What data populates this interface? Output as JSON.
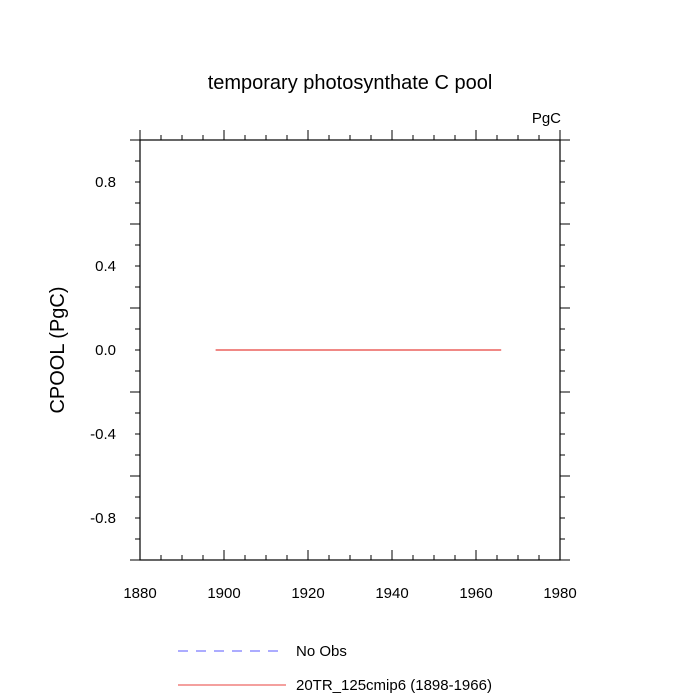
{
  "chart_data": {
    "type": "line",
    "title": "temporary photosynthate C pool",
    "units": "PgC",
    "xlabel": "",
    "ylabel": "CPOOL  (PgC)",
    "xlim": [
      1880,
      1980
    ],
    "ylim": [
      -1.0,
      1.0
    ],
    "x_ticks": [
      1880,
      1900,
      1920,
      1940,
      1960,
      1980
    ],
    "x_tick_labels": [
      "1880",
      "1900",
      "1920",
      "1940",
      "1960",
      "1980"
    ],
    "y_ticks": [
      -0.8,
      -0.4,
      0.0,
      0.4,
      0.8
    ],
    "y_tick_labels": [
      "-0.8",
      "-0.4",
      "0.0",
      "0.4",
      "0.8"
    ],
    "grid": false,
    "legend_position": "bottom",
    "series": [
      {
        "name": "No Obs",
        "style": "dashed",
        "color": "#5a5aff",
        "x": [],
        "y": []
      },
      {
        "name": "20TR_125cmip6 (1898-1966)",
        "style": "solid",
        "color": "#e8413c",
        "x": [
          1898,
          1966
        ],
        "y": [
          0.0,
          0.0
        ]
      }
    ]
  }
}
